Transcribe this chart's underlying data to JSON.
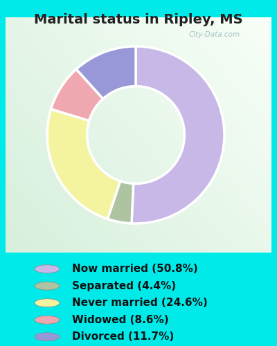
{
  "title": "Marital status in Ripley, MS",
  "slices": [
    50.8,
    4.4,
    24.6,
    8.6,
    11.7
  ],
  "labels": [
    "Now married (50.8%)",
    "Separated (4.4%)",
    "Never married (24.6%)",
    "Widowed (8.6%)",
    "Divorced (11.7%)"
  ],
  "colors": [
    "#c8b8e8",
    "#aec4a0",
    "#f4f4a0",
    "#f0a8b0",
    "#9898d8"
  ],
  "bg_outer": "#00eaea",
  "bg_inner_top": "#e8f5ee",
  "bg_inner_bottom": "#f5fef8",
  "title_color": "#222222",
  "title_fontsize": 14,
  "legend_fontsize": 11,
  "watermark": "City-Data.com",
  "donut_width": 0.45,
  "start_angle": 90
}
